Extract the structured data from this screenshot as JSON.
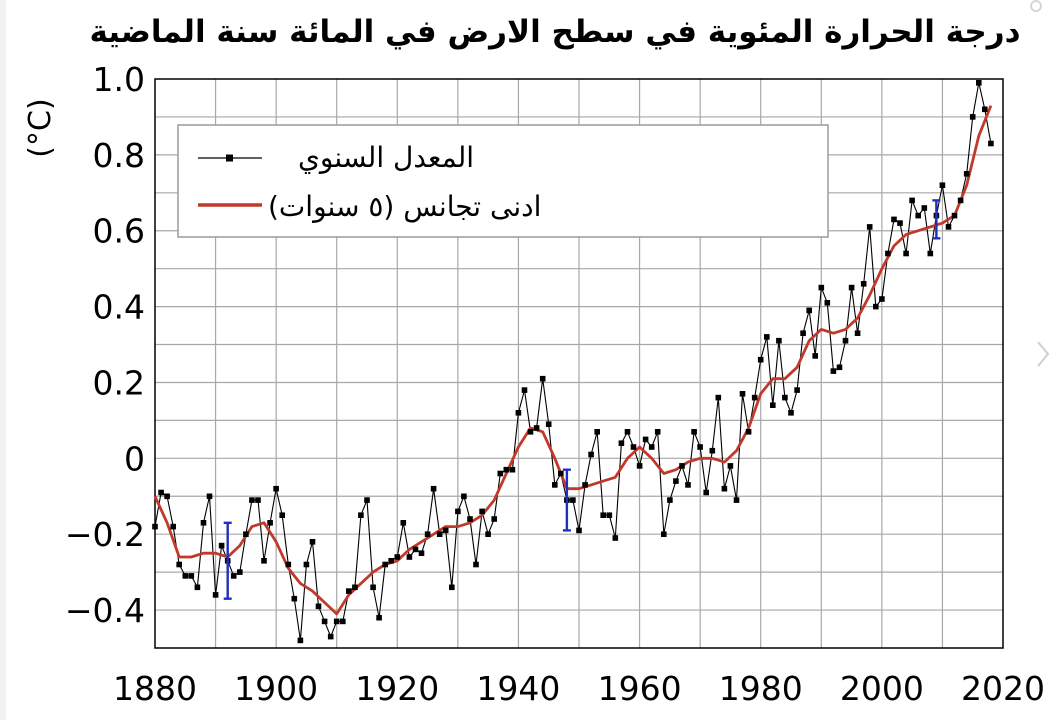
{
  "chart_data": {
    "type": "line",
    "title": "درجة الحرارة المئوية في سطح الارض في المائة سنة الماضية",
    "ylabel": "(°C)",
    "xlabel": "",
    "xlim": [
      1880,
      2020
    ],
    "ylim": [
      -0.5,
      1.0
    ],
    "x_ticks": [
      "1880",
      "1900",
      "1920",
      "1940",
      "1960",
      "1980",
      "2000",
      "2020"
    ],
    "y_ticks": [
      {
        "value": 1.0,
        "label": "1.0"
      },
      {
        "value": 0.8,
        "label": "0.8"
      },
      {
        "value": 0.6,
        "label": "0.6"
      },
      {
        "value": 0.4,
        "label": "0.4"
      },
      {
        "value": 0.2,
        "label": "0.2"
      },
      {
        "value": 0,
        "label": "0"
      },
      {
        "value": -0.2,
        "label": "−0.2"
      },
      {
        "value": -0.4,
        "label": "−0.4"
      }
    ],
    "grid": true,
    "legend_position": "top-left",
    "series": [
      {
        "name": "المعدل السنوي",
        "style": "line-markers",
        "color": "#000000",
        "x": [
          1880,
          1881,
          1882,
          1883,
          1884,
          1885,
          1886,
          1887,
          1888,
          1889,
          1890,
          1891,
          1892,
          1893,
          1894,
          1895,
          1896,
          1897,
          1898,
          1899,
          1900,
          1901,
          1902,
          1903,
          1904,
          1905,
          1906,
          1907,
          1908,
          1909,
          1910,
          1911,
          1912,
          1913,
          1914,
          1915,
          1916,
          1917,
          1918,
          1919,
          1920,
          1921,
          1922,
          1923,
          1924,
          1925,
          1926,
          1927,
          1928,
          1929,
          1930,
          1931,
          1932,
          1933,
          1934,
          1935,
          1936,
          1937,
          1938,
          1939,
          1940,
          1941,
          1942,
          1943,
          1944,
          1945,
          1946,
          1947,
          1948,
          1949,
          1950,
          1951,
          1952,
          1953,
          1954,
          1955,
          1956,
          1957,
          1958,
          1959,
          1960,
          1961,
          1962,
          1963,
          1964,
          1965,
          1966,
          1967,
          1968,
          1969,
          1970,
          1971,
          1972,
          1973,
          1974,
          1975,
          1976,
          1977,
          1978,
          1979,
          1980,
          1981,
          1982,
          1983,
          1984,
          1985,
          1986,
          1987,
          1988,
          1989,
          1990,
          1991,
          1992,
          1993,
          1994,
          1995,
          1996,
          1997,
          1998,
          1999,
          2000,
          2001,
          2002,
          2003,
          2004,
          2005,
          2006,
          2007,
          2008,
          2009,
          2010,
          2011,
          2012,
          2013,
          2014,
          2015,
          2016,
          2017,
          2018
        ],
        "y": [
          -0.18,
          -0.09,
          -0.1,
          -0.18,
          -0.28,
          -0.31,
          -0.31,
          -0.34,
          -0.17,
          -0.1,
          -0.36,
          -0.23,
          -0.27,
          -0.31,
          -0.3,
          -0.2,
          -0.11,
          -0.11,
          -0.27,
          -0.17,
          -0.08,
          -0.15,
          -0.28,
          -0.37,
          -0.48,
          -0.28,
          -0.22,
          -0.39,
          -0.43,
          -0.47,
          -0.43,
          -0.43,
          -0.35,
          -0.34,
          -0.15,
          -0.11,
          -0.34,
          -0.42,
          -0.28,
          -0.27,
          -0.26,
          -0.17,
          -0.26,
          -0.24,
          -0.25,
          -0.2,
          -0.08,
          -0.2,
          -0.19,
          -0.34,
          -0.14,
          -0.1,
          -0.16,
          -0.28,
          -0.14,
          -0.2,
          -0.16,
          -0.04,
          -0.03,
          -0.03,
          0.12,
          0.18,
          0.07,
          0.08,
          0.21,
          0.09,
          -0.07,
          -0.04,
          -0.11,
          -0.11,
          -0.19,
          -0.07,
          0.01,
          0.07,
          -0.15,
          -0.15,
          -0.21,
          0.04,
          0.07,
          0.03,
          -0.02,
          0.05,
          0.03,
          0.07,
          -0.2,
          -0.11,
          -0.06,
          -0.02,
          -0.07,
          0.07,
          0.03,
          -0.09,
          0.02,
          0.16,
          -0.08,
          -0.02,
          -0.11,
          0.17,
          0.07,
          0.16,
          0.26,
          0.32,
          0.14,
          0.31,
          0.16,
          0.12,
          0.18,
          0.33,
          0.39,
          0.27,
          0.45,
          0.41,
          0.23,
          0.24,
          0.31,
          0.45,
          0.33,
          0.46,
          0.61,
          0.4,
          0.42,
          0.54,
          0.63,
          0.62,
          0.54,
          0.68,
          0.64,
          0.66,
          0.54,
          0.64,
          0.72,
          0.61,
          0.64,
          0.68,
          0.75,
          0.9,
          0.99,
          0.92,
          0.83
        ]
      },
      {
        "name": "ادنى تجانس (٥ سنوات)",
        "style": "smooth-line",
        "color": "#c0392b",
        "x": [
          1880,
          1882,
          1884,
          1886,
          1888,
          1890,
          1892,
          1894,
          1896,
          1898,
          1900,
          1902,
          1904,
          1906,
          1908,
          1910,
          1912,
          1914,
          1916,
          1918,
          1920,
          1922,
          1924,
          1926,
          1928,
          1930,
          1932,
          1934,
          1936,
          1938,
          1940,
          1942,
          1944,
          1946,
          1948,
          1950,
          1952,
          1954,
          1956,
          1958,
          1960,
          1962,
          1964,
          1966,
          1968,
          1970,
          1972,
          1974,
          1976,
          1978,
          1980,
          1982,
          1984,
          1986,
          1988,
          1990,
          1992,
          1994,
          1996,
          1998,
          2000,
          2002,
          2004,
          2006,
          2008,
          2010,
          2012,
          2014,
          2016,
          2018
        ],
        "y": [
          -0.1,
          -0.17,
          -0.26,
          -0.26,
          -0.25,
          -0.25,
          -0.26,
          -0.23,
          -0.18,
          -0.17,
          -0.22,
          -0.29,
          -0.33,
          -0.35,
          -0.38,
          -0.41,
          -0.36,
          -0.33,
          -0.3,
          -0.28,
          -0.27,
          -0.24,
          -0.22,
          -0.2,
          -0.18,
          -0.18,
          -0.17,
          -0.15,
          -0.11,
          -0.04,
          0.03,
          0.08,
          0.07,
          0.0,
          -0.08,
          -0.08,
          -0.07,
          -0.06,
          -0.05,
          0.0,
          0.03,
          0.0,
          -0.04,
          -0.03,
          -0.01,
          0.0,
          0.0,
          -0.01,
          0.02,
          0.08,
          0.17,
          0.21,
          0.21,
          0.24,
          0.31,
          0.34,
          0.33,
          0.34,
          0.37,
          0.43,
          0.5,
          0.56,
          0.59,
          0.6,
          0.61,
          0.62,
          0.64,
          0.72,
          0.85,
          0.93
        ]
      }
    ],
    "uncertainty_bars": [
      {
        "x": 1892,
        "low": -0.37,
        "high": -0.17
      },
      {
        "x": 1948,
        "low": -0.19,
        "high": -0.03
      },
      {
        "x": 2009,
        "low": 0.58,
        "high": 0.68
      }
    ],
    "uncertainty_color": "#1f2fbf"
  }
}
